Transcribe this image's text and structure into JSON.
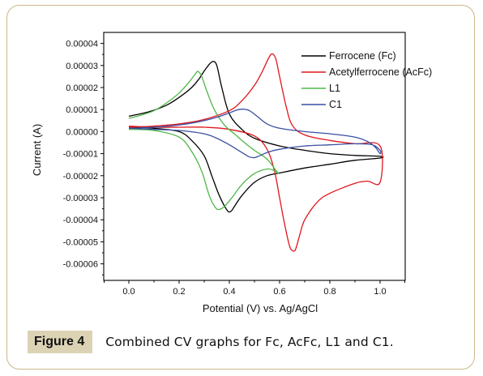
{
  "caption": {
    "label": "Figure 4",
    "text": "Combined CV graphs for Fc, AcFc, L1 and C1."
  },
  "chart_data": {
    "type": "line",
    "xlabel": "Potential (V) vs. Ag/AgCl",
    "ylabel": "Current (A)",
    "xlim": [
      -0.1,
      1.1
    ],
    "ylim": [
      -6.75e-05,
      4.5e-05
    ],
    "xticks": [
      "0.0",
      "0.2",
      "0.4",
      "0.6",
      "0.8",
      "1.0"
    ],
    "xtick_values": [
      0,
      0.2,
      0.4,
      0.6,
      0.8,
      1.0
    ],
    "yticks": [
      "0.00004",
      "0.00003",
      "0.00002",
      "0.00001",
      "0.00000",
      "-0.00001",
      "-0.00002",
      "-0.00003",
      "-0.00004",
      "-0.00005",
      "-0.00006"
    ],
    "ytick_values": [
      4e-05,
      3e-05,
      2e-05,
      1e-05,
      0,
      -1e-05,
      -2e-05,
      -3e-05,
      -4e-05,
      -5e-05,
      -6e-05
    ],
    "grid": false,
    "legend_position": "top-right",
    "series": [
      {
        "name": "Ferrocene (Fc)",
        "color": "#000000",
        "points": [
          [
            0.0,
            7e-06
          ],
          [
            0.08,
            9e-06
          ],
          [
            0.15,
            1.2e-05
          ],
          [
            0.2,
            1.55e-05
          ],
          [
            0.25,
            2e-05
          ],
          [
            0.28,
            2.4e-05
          ],
          [
            0.3,
            2.75e-05
          ],
          [
            0.32,
            3.05e-05
          ],
          [
            0.335,
            3.18e-05
          ],
          [
            0.35,
            3e-05
          ],
          [
            0.37,
            2e-05
          ],
          [
            0.4,
            8e-06
          ],
          [
            0.45,
            1e-06
          ],
          [
            0.5,
            -3e-06
          ],
          [
            0.6,
            -6.5e-06
          ],
          [
            0.7,
            -8.5e-06
          ],
          [
            0.8,
            -1e-05
          ],
          [
            0.9,
            -1.08e-05
          ],
          [
            1.0,
            -1.12e-05
          ],
          [
            1.0,
            -1.2e-05
          ],
          [
            0.9,
            -1.3e-05
          ],
          [
            0.8,
            -1.48e-05
          ],
          [
            0.7,
            -1.65e-05
          ],
          [
            0.6,
            -1.88e-05
          ],
          [
            0.55,
            -2e-05
          ],
          [
            0.5,
            -2.3e-05
          ],
          [
            0.45,
            -2.9e-05
          ],
          [
            0.42,
            -3.4e-05
          ],
          [
            0.405,
            -3.63e-05
          ],
          [
            0.39,
            -3.55e-05
          ],
          [
            0.36,
            -2.9e-05
          ],
          [
            0.33,
            -2e-05
          ],
          [
            0.3,
            -1.1e-05
          ],
          [
            0.25,
            -4e-06
          ],
          [
            0.2,
            0.0
          ],
          [
            0.1,
            1.5e-06
          ],
          [
            0.0,
            2e-06
          ]
        ]
      },
      {
        "name": "Acetylferrocene (AcFc)",
        "color": "#e0161c",
        "points": [
          [
            0.0,
            2e-06
          ],
          [
            0.1,
            2.5e-06
          ],
          [
            0.2,
            3.5e-06
          ],
          [
            0.3,
            5.5e-06
          ],
          [
            0.4,
            9.5e-06
          ],
          [
            0.45,
            1.4e-05
          ],
          [
            0.5,
            2.1e-05
          ],
          [
            0.53,
            2.7e-05
          ],
          [
            0.555,
            3.3e-05
          ],
          [
            0.57,
            3.53e-05
          ],
          [
            0.585,
            3.3e-05
          ],
          [
            0.6,
            2.5e-05
          ],
          [
            0.625,
            1.2e-05
          ],
          [
            0.65,
            3e-06
          ],
          [
            0.7,
            -1.5e-06
          ],
          [
            0.8,
            -4e-06
          ],
          [
            0.9,
            -5.5e-06
          ],
          [
            1.0,
            -6.5e-06
          ],
          [
            1.0,
            -2.3e-05
          ],
          [
            0.95,
            -2.25e-05
          ],
          [
            0.9,
            -2.35e-05
          ],
          [
            0.8,
            -2.8e-05
          ],
          [
            0.75,
            -3.2e-05
          ],
          [
            0.7,
            -4e-05
          ],
          [
            0.68,
            -4.7e-05
          ],
          [
            0.665,
            -5.3e-05
          ],
          [
            0.655,
            -5.42e-05
          ],
          [
            0.64,
            -5.2e-05
          ],
          [
            0.62,
            -4.2e-05
          ],
          [
            0.6,
            -3e-05
          ],
          [
            0.58,
            -1.8e-05
          ],
          [
            0.55,
            -8e-06
          ],
          [
            0.5,
            -2e-06
          ],
          [
            0.4,
            1e-06
          ],
          [
            0.3,
            2e-06
          ],
          [
            0.2,
            2e-06
          ],
          [
            0.1,
            2e-06
          ],
          [
            0.0,
            2.5e-06
          ]
        ]
      },
      {
        "name": "L1",
        "color": "#4fb748",
        "points": [
          [
            0.0,
            6e-06
          ],
          [
            0.05,
            7.5e-06
          ],
          [
            0.1,
            9.5e-06
          ],
          [
            0.15,
            1.3e-05
          ],
          [
            0.2,
            1.75e-05
          ],
          [
            0.24,
            2.25e-05
          ],
          [
            0.265,
            2.62e-05
          ],
          [
            0.275,
            2.73e-05
          ],
          [
            0.29,
            2.5e-05
          ],
          [
            0.31,
            1.85e-05
          ],
          [
            0.34,
            1e-05
          ],
          [
            0.38,
            3e-06
          ],
          [
            0.42,
            -1e-06
          ],
          [
            0.46,
            -5e-06
          ],
          [
            0.5,
            -8.5e-06
          ],
          [
            0.55,
            -1.25e-05
          ],
          [
            0.585,
            -1.75e-05
          ],
          [
            0.595,
            -1.9e-05
          ],
          [
            0.58,
            -1.78e-05
          ],
          [
            0.55,
            -1.7e-05
          ],
          [
            0.5,
            -1.9e-05
          ],
          [
            0.45,
            -2.4e-05
          ],
          [
            0.41,
            -3e-05
          ],
          [
            0.38,
            -3.4e-05
          ],
          [
            0.36,
            -3.53e-05
          ],
          [
            0.345,
            -3.45e-05
          ],
          [
            0.32,
            -2.9e-05
          ],
          [
            0.29,
            -1.8e-05
          ],
          [
            0.25,
            -9e-06
          ],
          [
            0.2,
            -2.5e-06
          ],
          [
            0.1,
            5e-07
          ],
          [
            0.0,
            1e-06
          ]
        ]
      },
      {
        "name": "C1",
        "color": "#3a4fa3",
        "points": [
          [
            0.0,
            1.5e-06
          ],
          [
            0.1,
            2e-06
          ],
          [
            0.2,
            3e-06
          ],
          [
            0.28,
            4.5e-06
          ],
          [
            0.35,
            6.5e-06
          ],
          [
            0.4,
            8.5e-06
          ],
          [
            0.43,
            9.8e-06
          ],
          [
            0.455,
            1.02e-05
          ],
          [
            0.48,
            9.5e-06
          ],
          [
            0.51,
            7e-06
          ],
          [
            0.55,
            3.5e-06
          ],
          [
            0.6,
            1.5e-06
          ],
          [
            0.7,
            0.0
          ],
          [
            0.8,
            -1e-06
          ],
          [
            0.9,
            -2.5e-06
          ],
          [
            0.95,
            -4.5e-06
          ],
          [
            0.98,
            -7e-06
          ],
          [
            1.0,
            -1e-05
          ],
          [
            1.0,
            -8.5e-06
          ],
          [
            0.97,
            -6e-06
          ],
          [
            0.9,
            -5.5e-06
          ],
          [
            0.8,
            -6e-06
          ],
          [
            0.7,
            -6.5e-06
          ],
          [
            0.6,
            -8e-06
          ],
          [
            0.55,
            -9.5e-06
          ],
          [
            0.52,
            -1.1e-05
          ],
          [
            0.5,
            -1.18e-05
          ],
          [
            0.48,
            -1.15e-05
          ],
          [
            0.45,
            -9.5e-06
          ],
          [
            0.4,
            -6e-06
          ],
          [
            0.35,
            -3e-06
          ],
          [
            0.3,
            -1e-06
          ],
          [
            0.2,
            5e-07
          ],
          [
            0.1,
            1e-06
          ],
          [
            0.0,
            1.5e-06
          ]
        ]
      }
    ]
  }
}
